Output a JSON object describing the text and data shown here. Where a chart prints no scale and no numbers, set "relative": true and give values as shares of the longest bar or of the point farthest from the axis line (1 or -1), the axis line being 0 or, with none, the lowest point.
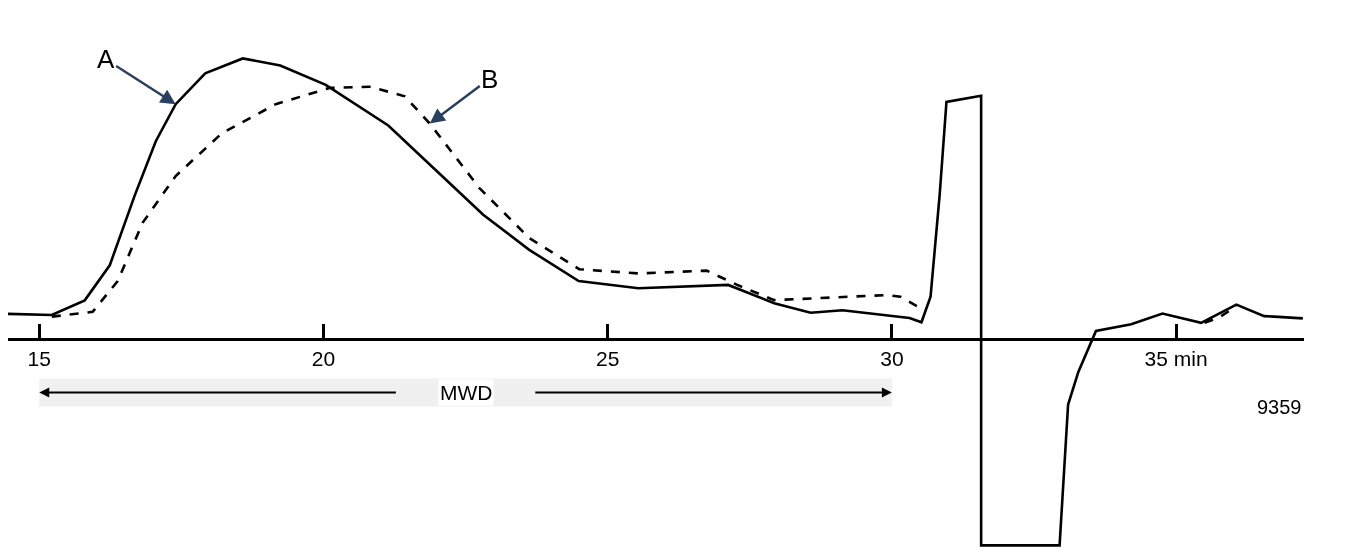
{
  "chart_data": {
    "type": "line",
    "relative": true,
    "xlim": [
      14.45,
      37.25
    ],
    "xticks": [
      15,
      20,
      25,
      30,
      {
        "value": 35,
        "label": "35 min"
      }
    ],
    "series": [
      {
        "color": "#000000",
        "line_style": "solid",
        "x": [
          14.45,
          15.22,
          15.8,
          16.24,
          16.68,
          17.05,
          17.4,
          17.92,
          18.58,
          19.24,
          20.04,
          21.14,
          21.94,
          22.81,
          23.62,
          24.49,
          25.54,
          27.12,
          27.93,
          28.57,
          29.13,
          30.31,
          30.52,
          30.68,
          30.84,
          30.96,
          31.57,
          31.57,
          32.95,
          33.1,
          33.28,
          33.59,
          34.21,
          34.76,
          35.44,
          36.06,
          36.55,
          37.23
        ],
        "values": [
          0.09,
          0.086,
          0.138,
          0.263,
          0.512,
          0.705,
          0.837,
          0.947,
          1.0,
          0.975,
          0.906,
          0.761,
          0.609,
          0.443,
          0.318,
          0.207,
          0.181,
          0.193,
          0.128,
          0.094,
          0.103,
          0.075,
          0.06,
          0.151,
          0.513,
          0.845,
          0.867,
          -0.735,
          -0.735,
          -0.233,
          -0.117,
          0.029,
          0.053,
          0.091,
          0.058,
          0.123,
          0.082,
          0.074
        ]
      },
      {
        "color": "#000000",
        "line_style": "dashed",
        "x": [
          15.22,
          15.94,
          16.38,
          16.82,
          17.4,
          18.21,
          19.16,
          20.11,
          20.83,
          21.43,
          21.87,
          22.74,
          23.62,
          24.5,
          25.54,
          26.74,
          27.28,
          27.93,
          29.92,
          30.15,
          30.48,
          30.55,
          null,
          35.5,
          35.75,
          36.06
        ],
        "values": [
          0.08,
          0.097,
          0.207,
          0.415,
          0.581,
          0.733,
          0.837,
          0.895,
          0.899,
          0.865,
          0.768,
          0.539,
          0.36,
          0.249,
          0.234,
          0.244,
          0.193,
          0.139,
          0.157,
          0.151,
          0.113,
          0.1,
          null,
          0.058,
          0.076,
          0.117
        ]
      }
    ],
    "annotations": [
      {
        "text": "A",
        "x": 17.4,
        "y": 0.837
      },
      {
        "text": "B",
        "x": 21.87,
        "y": 0.768
      },
      "9359"
    ],
    "bands": [
      {
        "axis": "x",
        "from": 15,
        "to": 30,
        "label": "MWD"
      }
    ],
    "grid": false
  }
}
